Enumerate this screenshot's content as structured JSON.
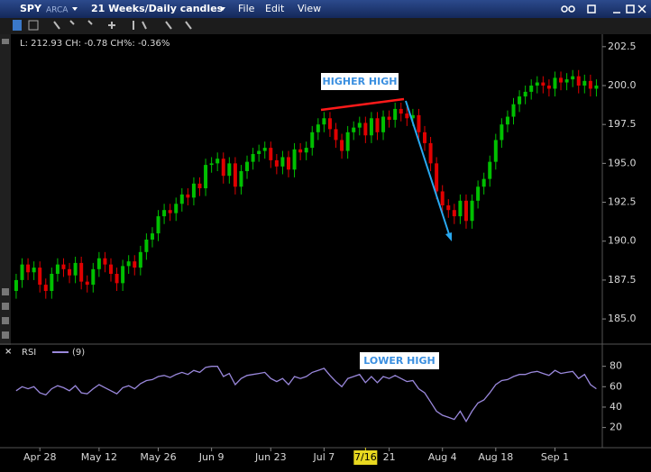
{
  "window": {
    "symbol": "SPY",
    "exchange": "ARCA",
    "timeframe": "21 Weeks/Daily candles",
    "menu": [
      "File",
      "Edit",
      "View"
    ],
    "quote": "L: 212.93 CH: -0.78 CH%: -0.36%"
  },
  "chart_data": [
    {
      "type": "candlestick",
      "annotations": [
        "HIGHER HIGH"
      ],
      "up_color": "#00c000",
      "down_color": "#e00000",
      "xlim": [
        -0.6,
        99
      ],
      "xticks": [
        {
          "value": 4,
          "label": "Apr 28"
        },
        {
          "value": 14,
          "label": "May 12"
        },
        {
          "value": 24,
          "label": "May 26"
        },
        {
          "value": 33,
          "label": "Jun 9"
        },
        {
          "value": 43,
          "label": "Jun 23"
        },
        {
          "value": 52,
          "label": "Jul 7"
        },
        {
          "value": 63,
          "label": "21"
        },
        {
          "value": 72,
          "label": "Aug 4"
        },
        {
          "value": 81,
          "label": "Aug 18"
        },
        {
          "value": 91,
          "label": "Sep 1"
        }
      ],
      "cursor_label": {
        "value": 59,
        "label": "7/16"
      },
      "ylim": [
        183.5,
        203.3
      ],
      "yticks": [
        {
          "value": 185,
          "label": "185.0"
        },
        187.5,
        {
          "value": 190,
          "label": "190.0"
        },
        192.5,
        {
          "value": 195,
          "label": "195.0"
        },
        197.5,
        {
          "value": 200,
          "label": "200.0"
        },
        202.5
      ],
      "open": [
        186.8,
        187.5,
        188.5,
        188.0,
        188.3,
        187.2,
        186.8,
        187.9,
        188.5,
        188.2,
        187.8,
        188.6,
        187.4,
        187.2,
        188.2,
        188.9,
        188.5,
        187.9,
        187.3,
        188.4,
        188.7,
        188.3,
        189.3,
        190.1,
        190.5,
        191.6,
        192.0,
        191.8,
        192.4,
        193.0,
        192.8,
        193.7,
        193.4,
        194.9,
        195.0,
        195.3,
        194.2,
        195.0,
        193.5,
        194.5,
        195.1,
        195.6,
        195.8,
        196.0,
        195.2,
        194.8,
        195.4,
        194.6,
        195.9,
        195.7,
        196.0,
        197.0,
        197.5,
        197.9,
        197.2,
        196.5,
        195.8,
        197.0,
        197.3,
        197.6,
        196.8,
        197.9,
        197.0,
        198.0,
        197.8,
        198.5,
        198.2,
        197.9,
        198.1,
        197.0,
        196.3,
        195.0,
        193.2,
        192.3,
        192.0,
        191.6,
        192.6,
        191.3,
        192.6,
        193.5,
        194.0,
        195.1,
        196.5,
        197.5,
        198.0,
        198.8,
        199.3,
        199.6,
        200.0,
        200.2,
        200.0,
        199.8,
        200.5,
        200.2,
        200.4,
        200.6,
        200.0,
        200.3,
        199.8
      ],
      "high": [
        187.9,
        188.9,
        188.9,
        188.7,
        188.7,
        187.6,
        188.3,
        188.9,
        188.9,
        188.6,
        189.0,
        189.0,
        187.8,
        188.6,
        189.3,
        189.3,
        188.9,
        188.3,
        188.8,
        189.1,
        189.1,
        189.7,
        190.5,
        190.9,
        192.0,
        192.4,
        192.4,
        192.8,
        193.4,
        193.4,
        194.1,
        194.1,
        195.3,
        195.4,
        195.7,
        195.7,
        195.4,
        195.4,
        194.9,
        195.5,
        196.0,
        196.2,
        196.4,
        196.4,
        195.6,
        195.8,
        195.8,
        196.3,
        196.3,
        196.4,
        197.4,
        197.9,
        198.3,
        198.3,
        197.6,
        196.9,
        197.4,
        197.7,
        198.0,
        198.0,
        198.3,
        198.3,
        198.4,
        198.4,
        198.9,
        198.9,
        198.6,
        198.5,
        198.5,
        197.4,
        196.7,
        195.4,
        193.6,
        192.7,
        192.4,
        193.0,
        193.0,
        193.0,
        193.9,
        194.4,
        195.5,
        196.9,
        197.9,
        198.4,
        199.2,
        199.7,
        200.0,
        200.4,
        200.6,
        200.6,
        200.4,
        200.9,
        200.9,
        200.8,
        201.0,
        201.0,
        200.7,
        200.7,
        200.4
      ],
      "low": [
        186.3,
        187.0,
        187.5,
        187.5,
        186.7,
        186.3,
        186.3,
        187.4,
        187.7,
        187.3,
        187.3,
        186.9,
        186.7,
        186.7,
        187.7,
        188.0,
        187.4,
        186.8,
        186.8,
        187.9,
        187.8,
        187.8,
        188.8,
        189.6,
        190.0,
        191.1,
        191.3,
        191.3,
        191.9,
        192.3,
        192.3,
        192.9,
        192.9,
        194.4,
        194.5,
        193.7,
        193.7,
        193.0,
        193.0,
        194.0,
        194.6,
        195.1,
        195.3,
        194.7,
        194.3,
        194.3,
        194.1,
        194.1,
        195.2,
        195.2,
        195.5,
        196.5,
        197.0,
        196.7,
        196.0,
        195.3,
        195.3,
        196.5,
        196.8,
        196.3,
        196.3,
        196.5,
        196.5,
        197.3,
        197.3,
        197.7,
        197.4,
        197.4,
        196.5,
        195.8,
        194.5,
        192.7,
        191.8,
        191.5,
        191.1,
        191.1,
        190.8,
        190.8,
        192.1,
        193.0,
        193.5,
        194.6,
        196.0,
        197.0,
        197.5,
        198.3,
        198.8,
        199.1,
        199.5,
        199.5,
        199.3,
        199.3,
        199.7,
        199.7,
        199.9,
        199.5,
        199.5,
        199.3,
        199.3
      ],
      "close": [
        187.5,
        188.5,
        188.0,
        188.3,
        187.2,
        186.8,
        187.9,
        188.5,
        188.2,
        187.8,
        188.6,
        187.4,
        187.2,
        188.2,
        188.9,
        188.5,
        187.9,
        187.3,
        188.4,
        188.7,
        188.3,
        189.3,
        190.1,
        190.5,
        191.6,
        192.0,
        191.8,
        192.4,
        193.0,
        192.8,
        193.7,
        193.4,
        194.9,
        195.0,
        195.3,
        194.2,
        195.0,
        193.5,
        194.5,
        195.1,
        195.6,
        195.8,
        196.0,
        195.2,
        194.8,
        195.4,
        194.6,
        195.9,
        195.7,
        196.0,
        197.0,
        197.5,
        197.9,
        197.2,
        196.5,
        195.8,
        197.0,
        197.3,
        197.6,
        196.8,
        197.9,
        197.0,
        198.0,
        197.8,
        198.5,
        198.2,
        197.9,
        198.1,
        197.0,
        196.3,
        195.0,
        193.2,
        192.3,
        192.0,
        191.6,
        192.6,
        191.3,
        192.6,
        193.5,
        194.0,
        195.1,
        196.5,
        197.5,
        198.0,
        198.8,
        199.3,
        199.6,
        200.0,
        200.2,
        200.0,
        199.8,
        200.5,
        200.2,
        200.4,
        200.6,
        200.0,
        200.3,
        199.8,
        200.0
      ]
    },
    {
      "type": "line",
      "title": "RSI",
      "annotations": [
        "LOWER HIGH"
      ],
      "xlim": [
        -0.6,
        99
      ],
      "ylim": [
        2,
        100
      ],
      "yticks": [
        20,
        40,
        60,
        80
      ],
      "series": [
        {
          "name": "(9)",
          "color": "#9a88dc",
          "values": [
            56,
            60,
            58,
            60,
            54,
            52,
            58,
            61,
            59,
            56,
            61,
            54,
            53,
            58,
            62,
            59,
            56,
            53,
            59,
            61,
            58,
            63,
            66,
            67,
            70,
            71,
            69,
            72,
            74,
            72,
            76,
            74,
            79,
            80,
            80,
            70,
            73,
            62,
            68,
            71,
            72,
            73,
            74,
            68,
            65,
            68,
            62,
            70,
            68,
            70,
            74,
            76,
            78,
            71,
            65,
            60,
            68,
            70,
            72,
            64,
            70,
            64,
            70,
            68,
            71,
            68,
            65,
            66,
            58,
            54,
            45,
            36,
            32,
            30,
            28,
            36,
            26,
            36,
            44,
            47,
            54,
            62,
            66,
            67,
            70,
            72,
            72,
            74,
            75,
            73,
            71,
            76,
            73,
            74,
            75,
            68,
            72,
            62,
            58
          ]
        }
      ]
    }
  ]
}
